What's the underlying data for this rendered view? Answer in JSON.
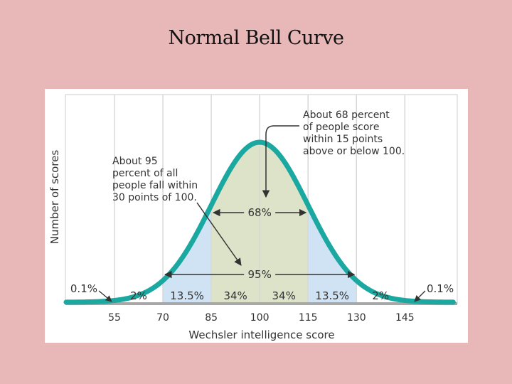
{
  "slide": {
    "title": "Normal Bell Curve"
  },
  "chart_data": {
    "type": "area",
    "xlabel": "Wechsler intelligence score",
    "ylabel": "Number of scores",
    "x_ticks": [
      55,
      70,
      85,
      100,
      115,
      130,
      145
    ],
    "xlim": [
      40,
      160
    ],
    "distribution": {
      "mean": 100,
      "sd": 15
    },
    "bands": [
      {
        "from": 40,
        "to": 55,
        "label": "0.1%",
        "color": "#ffffff"
      },
      {
        "from": 55,
        "to": 70,
        "label": "2%",
        "color": "#ffffff"
      },
      {
        "from": 70,
        "to": 85,
        "label": "13.5%",
        "color": "#cfe3f5"
      },
      {
        "from": 85,
        "to": 100,
        "label": "34%",
        "color": "#dde3c8"
      },
      {
        "from": 100,
        "to": 115,
        "label": "34%",
        "color": "#dde3c8"
      },
      {
        "from": 115,
        "to": 130,
        "label": "13.5%",
        "color": "#cfe3f5"
      },
      {
        "from": 130,
        "to": 145,
        "label": "2%",
        "color": "#ffffff"
      },
      {
        "from": 145,
        "to": 160,
        "label": "0.1%",
        "color": "#ffffff"
      }
    ],
    "ranges": [
      {
        "from": 85,
        "to": 115,
        "label": "68%"
      },
      {
        "from": 70,
        "to": 130,
        "label": "95%"
      }
    ],
    "annotations": {
      "sixty_eight": [
        "About 68 percent",
        "of people score",
        "within 15 points",
        "above or below 100."
      ],
      "ninety_five": [
        "About 95",
        "percent of all",
        "people fall within",
        "30 points of 100."
      ]
    },
    "curve_color": "#1aa8a0"
  }
}
